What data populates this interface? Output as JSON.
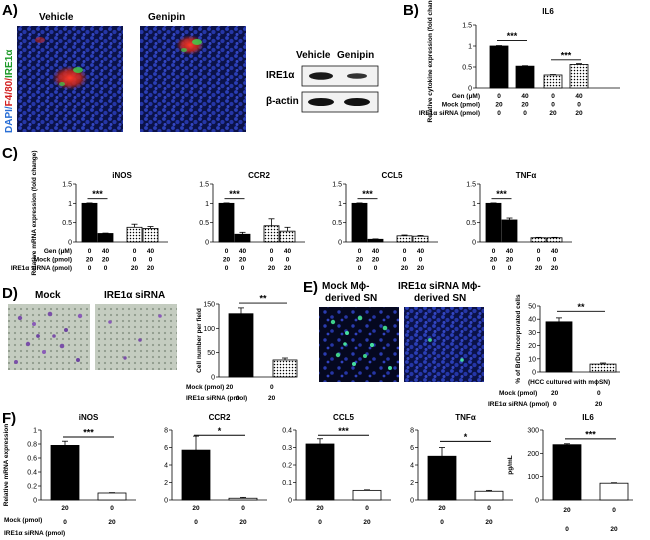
{
  "panels": {
    "A": {
      "letter": "A)",
      "vehicle_label": "Vehicle",
      "genipin_label": "Genipin",
      "stain_dapi": "DAPI/",
      "stain_f480": "F4/80/",
      "stain_ire": "IRE1α",
      "wb_col1": "Vehicle",
      "wb_col2": "Genipin",
      "wb_row1": "IRE1α",
      "wb_row2": "β-actin"
    },
    "B": {
      "letter": "B)"
    },
    "C": {
      "letter": "C)"
    },
    "D": {
      "letter": "D)",
      "img1_label": "Mock",
      "img2_label": "IRE1α siRNA",
      "mock_row": "Mock (pmol)",
      "sirna_row": "IRE1α siRNA  (pmol)",
      "mock_vals": [
        "20",
        "0"
      ],
      "sirna_vals": [
        "0",
        "20"
      ]
    },
    "E": {
      "letter": "E)",
      "img1_label_l1": "Mock  Mϕ-",
      "img1_label_l2": "derived   SN",
      "img2_label_l1": "IRE1α siRNA  Mϕ-",
      "img2_label_l2": "derived   SN",
      "note": "(HCC cultured with mϕSN)",
      "mock_row": "Mock (pmol)",
      "sirna_row": "IRE1α siRNA (pmol)",
      "mock_vals": [
        "20",
        "0"
      ],
      "sirna_vals": [
        "0",
        "20"
      ]
    },
    "F": {
      "letter": "F)",
      "mock_row": "Mock (pmol)",
      "sirna_row": "IRE1α siRNA  (pmol)",
      "mock_vals": [
        "20",
        "0"
      ],
      "sirna_vals": [
        "0",
        "20"
      ]
    }
  },
  "row_labels_c": {
    "gen": "Gen (μM)",
    "mock": "Mock (pmol)",
    "sirna": "IRE1α siRNA (pmol)"
  },
  "colors": {
    "black": "#000000",
    "white": "#ffffff",
    "nuclei": "#2233aa",
    "background": "#0a0f40"
  },
  "chart_data": [
    {
      "id": "B",
      "type": "bar",
      "title": "IL6",
      "ylabel": "Relative cytokine expression (fold change)",
      "ylim": [
        0,
        1.5
      ],
      "yticks": [
        "0",
        "0.5",
        "1",
        "1.5"
      ],
      "categories": [
        "Mock+Gen0",
        "Mock+Gen40",
        "siRNA+Gen0",
        "siRNA+Gen40"
      ],
      "values": [
        1.0,
        0.52,
        0.31,
        0.56
      ],
      "errors": [
        0.01,
        0.01,
        0.01,
        0.02
      ],
      "fills": [
        "black",
        "black",
        "dots",
        "dots"
      ],
      "significance": [
        {
          "from": 0,
          "to": 1,
          "label": "***",
          "y": 1.13
        },
        {
          "from": 2,
          "to": 3,
          "label": "***",
          "y": 0.67
        }
      ],
      "rows": [
        [
          "0",
          "40",
          "0",
          "40"
        ],
        [
          "20",
          "20",
          "0",
          "0"
        ],
        [
          "0",
          "0",
          "20",
          "20"
        ]
      ]
    },
    {
      "id": "C1",
      "type": "bar",
      "title": "iNOS",
      "ylabel": "Relative mRNA expression (fold change)",
      "ylim": [
        0,
        1.5
      ],
      "yticks": [
        "0",
        "0.5",
        "1",
        "1.5"
      ],
      "categories": [
        "Mock+Gen0",
        "Mock+Gen40",
        "siRNA+Gen0",
        "siRNA+Gen40"
      ],
      "values": [
        1.0,
        0.22,
        0.38,
        0.35
      ],
      "errors": [
        0.01,
        0.01,
        0.08,
        0.05
      ],
      "fills": [
        "black",
        "black",
        "dots",
        "dots"
      ],
      "significance": [
        {
          "from": 0,
          "to": 1,
          "label": "***",
          "y": 1.12
        }
      ],
      "rows": [
        [
          "0",
          "40",
          "0",
          "40"
        ],
        [
          "20",
          "20",
          "0",
          "0"
        ],
        [
          "0",
          "0",
          "20",
          "20"
        ]
      ]
    },
    {
      "id": "C2",
      "type": "bar",
      "title": "CCR2",
      "ylabel": "",
      "ylim": [
        0,
        1.5
      ],
      "yticks": [
        "0",
        "0.5",
        "1",
        "1.5"
      ],
      "categories": [
        "Mock+Gen0",
        "Mock+Gen40",
        "siRNA+Gen0",
        "siRNA+Gen40"
      ],
      "values": [
        1.0,
        0.2,
        0.42,
        0.28
      ],
      "errors": [
        0.01,
        0.05,
        0.18,
        0.1
      ],
      "fills": [
        "black",
        "black",
        "dots",
        "dots"
      ],
      "significance": [
        {
          "from": 0,
          "to": 1,
          "label": "***",
          "y": 1.12
        }
      ],
      "rows": [
        [
          "0",
          "40",
          "0",
          "40"
        ],
        [
          "20",
          "20",
          "0",
          "0"
        ],
        [
          "0",
          "0",
          "20",
          "20"
        ]
      ]
    },
    {
      "id": "C3",
      "type": "bar",
      "title": "CCL5",
      "ylabel": "",
      "ylim": [
        0,
        1.5
      ],
      "yticks": [
        "0",
        "0.5",
        "1",
        "1.5"
      ],
      "categories": [
        "Mock+Gen0",
        "Mock+Gen40",
        "siRNA+Gen0",
        "siRNA+Gen40"
      ],
      "values": [
        1.0,
        0.07,
        0.16,
        0.15
      ],
      "errors": [
        0.01,
        0.01,
        0.02,
        0.02
      ],
      "fills": [
        "black",
        "black",
        "dots",
        "dots"
      ],
      "significance": [
        {
          "from": 0,
          "to": 1,
          "label": "***",
          "y": 1.12
        }
      ],
      "rows": [
        [
          "0",
          "40",
          "0",
          "40"
        ],
        [
          "20",
          "20",
          "0",
          "0"
        ],
        [
          "0",
          "0",
          "20",
          "20"
        ]
      ]
    },
    {
      "id": "C4",
      "type": "bar",
      "title": "TNFα",
      "ylabel": "",
      "ylim": [
        0,
        1.5
      ],
      "yticks": [
        "0",
        "0.5",
        "1",
        "1.5"
      ],
      "categories": [
        "Mock+Gen0",
        "Mock+Gen40",
        "siRNA+Gen0",
        "siRNA+Gen40"
      ],
      "values": [
        1.0,
        0.57,
        0.11,
        0.11
      ],
      "errors": [
        0.01,
        0.05,
        0.01,
        0.01
      ],
      "fills": [
        "black",
        "black",
        "dots",
        "dots"
      ],
      "significance": [
        {
          "from": 0,
          "to": 1,
          "label": "***",
          "y": 1.12
        }
      ],
      "rows": [
        [
          "0",
          "40",
          "0",
          "40"
        ],
        [
          "20",
          "20",
          "0",
          "0"
        ],
        [
          "0",
          "0",
          "20",
          "20"
        ]
      ]
    },
    {
      "id": "D",
      "type": "bar",
      "title": "",
      "ylabel": "Cell number per field",
      "ylim": [
        0,
        150
      ],
      "yticks": [
        "0",
        "50",
        "100",
        "150"
      ],
      "categories": [
        "Mock",
        "IRE1α siRNA"
      ],
      "values": [
        130,
        35
      ],
      "errors": [
        12,
        4
      ],
      "fills": [
        "black",
        "dots"
      ],
      "significance": [
        {
          "from": 0,
          "to": 1,
          "label": "**",
          "y": 152
        }
      ]
    },
    {
      "id": "E",
      "type": "bar",
      "title": "",
      "ylabel": "% of BrDu incorporated cells",
      "ylim": [
        0,
        50
      ],
      "yticks": [
        "0",
        "10",
        "20",
        "30",
        "40",
        "50"
      ],
      "categories": [
        "Mock",
        "IRE1α siRNA"
      ],
      "values": [
        38,
        6
      ],
      "errors": [
        3,
        0.8
      ],
      "fills": [
        "black",
        "dots"
      ],
      "significance": [
        {
          "from": 0,
          "to": 1,
          "label": "**",
          "y": 46
        }
      ]
    },
    {
      "id": "F1",
      "type": "bar",
      "title": "iNOS",
      "ylabel": "Relative mRNA expression",
      "ylim": [
        0,
        1.0
      ],
      "yticks": [
        "0",
        "0.2",
        "0.4",
        "0.6",
        "0.8",
        "1"
      ],
      "categories": [
        "Mock",
        "IRE1α siRNA"
      ],
      "values": [
        0.78,
        0.1
      ],
      "errors": [
        0.06,
        0.005
      ],
      "fills": [
        "black",
        "white"
      ],
      "significance": [
        {
          "from": 0,
          "to": 1,
          "label": "***",
          "y": 0.9
        }
      ]
    },
    {
      "id": "F2",
      "type": "bar",
      "title": "CCR2",
      "ylabel": "",
      "ylim": [
        0,
        8
      ],
      "yticks": [
        "0",
        "2",
        "4",
        "6",
        "8"
      ],
      "categories": [
        "Mock",
        "IRE1α siRNA"
      ],
      "values": [
        5.7,
        0.2
      ],
      "errors": [
        1.6,
        0.1
      ],
      "fills": [
        "black",
        "white"
      ],
      "significance": [
        {
          "from": 0,
          "to": 1,
          "label": "*",
          "y": 7.4
        }
      ]
    },
    {
      "id": "F3",
      "type": "bar",
      "title": "CCL5",
      "ylabel": "",
      "ylim": [
        0,
        0.4
      ],
      "yticks": [
        "0",
        "0.1",
        "0.2",
        "0.3",
        "0.4"
      ],
      "categories": [
        "Mock",
        "IRE1α siRNA"
      ],
      "values": [
        0.32,
        0.055
      ],
      "errors": [
        0.03,
        0.003
      ],
      "fills": [
        "black",
        "white"
      ],
      "significance": [
        {
          "from": 0,
          "to": 1,
          "label": "***",
          "y": 0.37
        }
      ]
    },
    {
      "id": "F4",
      "type": "bar",
      "title": "TNFα",
      "ylabel": "",
      "ylim": [
        0,
        8
      ],
      "yticks": [
        "0",
        "2",
        "4",
        "6",
        "8"
      ],
      "categories": [
        "Mock",
        "IRE1α siRNA"
      ],
      "values": [
        5.0,
        1.0
      ],
      "errors": [
        1.0,
        0.1
      ],
      "fills": [
        "black",
        "white"
      ],
      "significance": [
        {
          "from": 0,
          "to": 1,
          "label": "*",
          "y": 6.7
        }
      ]
    },
    {
      "id": "F5",
      "type": "bar",
      "title": "IL6",
      "ylabel": "pg/mL",
      "ylim": [
        0,
        300
      ],
      "yticks": [
        "0",
        "100",
        "200",
        "300"
      ],
      "categories": [
        "Mock",
        "IRE1α siRNA"
      ],
      "values": [
        237,
        72
      ],
      "errors": [
        4,
        2
      ],
      "fills": [
        "black",
        "white"
      ],
      "significance": [
        {
          "from": 0,
          "to": 1,
          "label": "***",
          "y": 262
        }
      ]
    }
  ]
}
